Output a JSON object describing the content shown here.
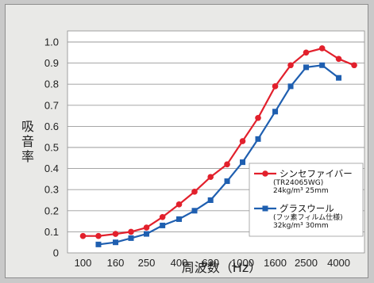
{
  "chart_data": {
    "type": "line",
    "title": "",
    "xlabel": "周波数（Hz）",
    "ylabel": "吸音率",
    "xscale": "log",
    "ylim": [
      0,
      1.0
    ],
    "grid": true,
    "legend_position": "bottom-right",
    "x_ticks": [
      "100",
      "160",
      "250",
      "400",
      "630",
      "1000",
      "1600",
      "2500",
      "4000"
    ],
    "y_ticks": [
      "0",
      "0.1",
      "0.2",
      "0.3",
      "0.4",
      "0.5",
      "0.6",
      "0.7",
      "0.8",
      "0.9",
      "1.0"
    ],
    "series": [
      {
        "name": "シンセファイバー",
        "detail": [
          "(TR24065WG)",
          "24kg/m³ 25mm"
        ],
        "color": "#e2202c",
        "marker": "circle",
        "x": [
          100,
          125,
          160,
          200,
          250,
          315,
          400,
          500,
          630,
          800,
          1000,
          1250,
          1600,
          2000,
          2500,
          3150,
          4000,
          5000
        ],
        "y": [
          0.08,
          0.08,
          0.09,
          0.1,
          0.12,
          0.17,
          0.23,
          0.29,
          0.36,
          0.42,
          0.53,
          0.64,
          0.79,
          0.89,
          0.95,
          0.97,
          0.92,
          0.89
        ]
      },
      {
        "name": "グラスウール",
        "detail": [
          "(フッ素フィルム仕様)",
          "32kg/m³ 30mm"
        ],
        "color": "#1f5fb0",
        "marker": "square",
        "x": [
          125,
          160,
          200,
          250,
          315,
          400,
          500,
          630,
          800,
          1000,
          1250,
          1600,
          2000,
          2500,
          3150,
          4000
        ],
        "y": [
          0.04,
          0.05,
          0.07,
          0.09,
          0.13,
          0.16,
          0.2,
          0.25,
          0.34,
          0.43,
          0.54,
          0.67,
          0.79,
          0.88,
          0.89,
          0.83
        ]
      }
    ]
  }
}
